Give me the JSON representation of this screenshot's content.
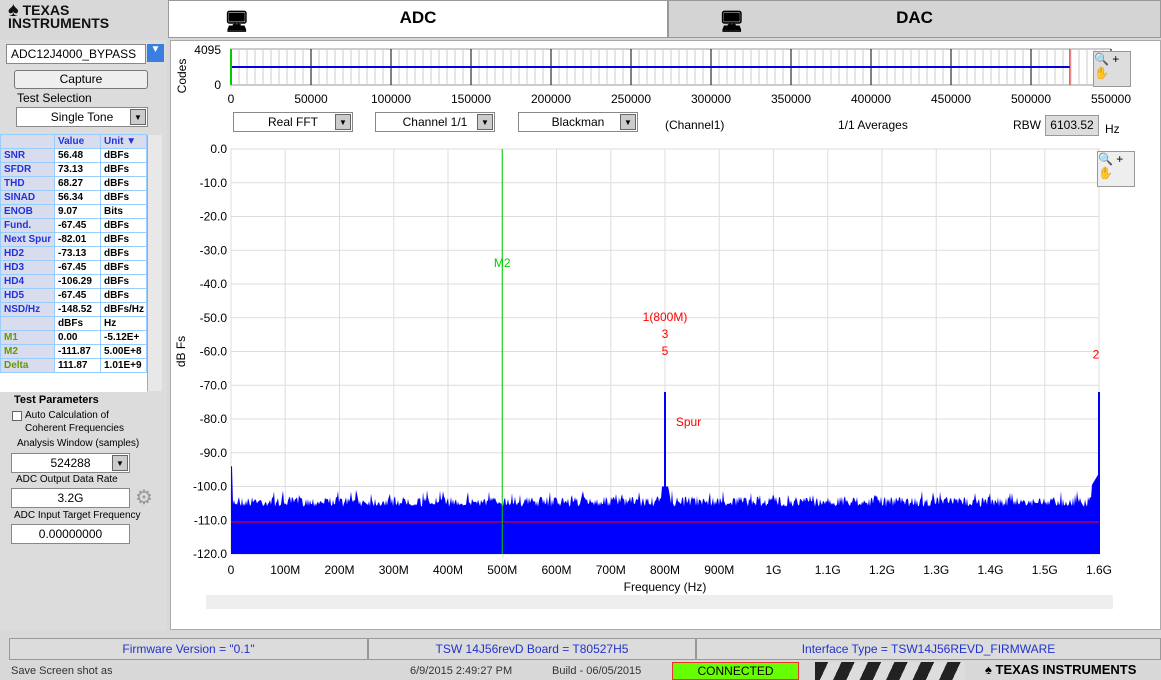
{
  "logo": "TEXAS INSTRUMENTS",
  "tabs": [
    {
      "label": "ADC",
      "active": true
    },
    {
      "label": "DAC",
      "active": false
    }
  ],
  "left": {
    "device": "ADC12J4000_BYPASS",
    "capture": "Capture",
    "test_selection_label": "Test Selection",
    "test_selection": "Single Tone",
    "table_headers": [
      "Value",
      "Unit"
    ],
    "rows": [
      {
        "n": "SNR",
        "v": "56.48",
        "u": "dBFs"
      },
      {
        "n": "SFDR",
        "v": "73.13",
        "u": "dBFs"
      },
      {
        "n": "THD",
        "v": "68.27",
        "u": "dBFs"
      },
      {
        "n": "SINAD",
        "v": "56.34",
        "u": "dBFs"
      },
      {
        "n": "ENOB",
        "v": "9.07",
        "u": "Bits"
      },
      {
        "n": "Fund.",
        "v": "-67.45",
        "u": "dBFs"
      },
      {
        "n": "Next Spur",
        "v": "-82.01",
        "u": "dBFs"
      },
      {
        "n": "HD2",
        "v": "-73.13",
        "u": "dBFs"
      },
      {
        "n": "HD3",
        "v": "-67.45",
        "u": "dBFs"
      },
      {
        "n": "HD4",
        "v": "-106.29",
        "u": "dBFs"
      },
      {
        "n": "HD5",
        "v": "-67.45",
        "u": "dBFs"
      },
      {
        "n": "NSD/Hz",
        "v": "-148.52",
        "u": "dBFs/Hz"
      },
      {
        "n": "",
        "v": "dBFs",
        "u": "Hz"
      },
      {
        "n": "M1",
        "v": "0.00",
        "u": "-5.12E+"
      },
      {
        "n": "M2",
        "v": "-111.87",
        "u": "5.00E+8"
      },
      {
        "n": "Delta",
        "v": "111.87",
        "u": "1.01E+9"
      }
    ],
    "test_params": "Test Parameters",
    "auto_calc": "Auto Calculation of Coherent Frequencies",
    "analysis_window_label": "Analysis Window (samples)",
    "analysis_window": "524288",
    "output_rate_label": "ADC Output Data Rate",
    "output_rate": "3.2G",
    "input_freq_label": "ADC Input Target Frequency",
    "input_freq": "0.00000000"
  },
  "top_chart": {
    "ylabel": "Codes",
    "yticks": [
      "4095",
      "0"
    ],
    "xticks": [
      "0",
      "50000",
      "100000",
      "150000",
      "200000",
      "250000",
      "300000",
      "350000",
      "400000",
      "450000",
      "500000",
      "550000"
    ]
  },
  "controls": {
    "fft": "Real FFT",
    "channel": "Channel 1/1",
    "window": "Blackman",
    "channel_label": "(Channel1)",
    "averages": "1/1 Averages",
    "rbw_label": "RBW",
    "rbw": "6103.52",
    "rbw_unit": "Hz"
  },
  "chart_data": {
    "type": "area",
    "xlabel": "Frequency (Hz)",
    "ylabel": "dB Fs",
    "ylim": [
      -120,
      0
    ],
    "xlim": [
      0,
      1600000000.0
    ],
    "yticks": [
      "0.0",
      "-10.0",
      "-20.0",
      "-30.0",
      "-40.0",
      "-50.0",
      "-60.0",
      "-70.0",
      "-80.0",
      "-90.0",
      "-100.0",
      "-110.0",
      "-120.0"
    ],
    "xticks": [
      "0",
      "100M",
      "200M",
      "300M",
      "400M",
      "500M",
      "600M",
      "700M",
      "800M",
      "900M",
      "1G",
      "1.1G",
      "1.2G",
      "1.3G",
      "1.4G",
      "1.5G",
      "1.6G"
    ],
    "noise_floor": -103,
    "peaks": [
      {
        "x": 800000000.0,
        "y": -72
      },
      {
        "x": 1600000000.0,
        "y": -72
      }
    ],
    "reference_line": -110.5,
    "marker": {
      "label": "M2",
      "x": 500000000.0
    },
    "annotations": [
      {
        "text": "1(800M)",
        "x": 800000000.0,
        "y": -51
      },
      {
        "text": "3",
        "x": 800000000.0,
        "y": -56
      },
      {
        "text": "5",
        "x": 800000000.0,
        "y": -61
      },
      {
        "text": "2",
        "x": 1600000000.0,
        "y": -62
      },
      {
        "text": "Spur",
        "x": 820000000.0,
        "y": -82
      }
    ],
    "colors": {
      "fill": "#0000ff",
      "marker": "#00cc00",
      "ref": "#ff0000",
      "annot": "#ff0000"
    }
  },
  "status": {
    "firmware": "Firmware Version = \"0.1\"",
    "board": "TSW 14J56revD Board = T80527H5",
    "interface": "Interface Type = TSW14J56REVD_FIRMWARE",
    "save": "Save Screen shot as",
    "datetime": "6/9/2015 2:49:27 PM",
    "build": "Build  - 06/05/2015",
    "connected": "CONNECTED"
  }
}
